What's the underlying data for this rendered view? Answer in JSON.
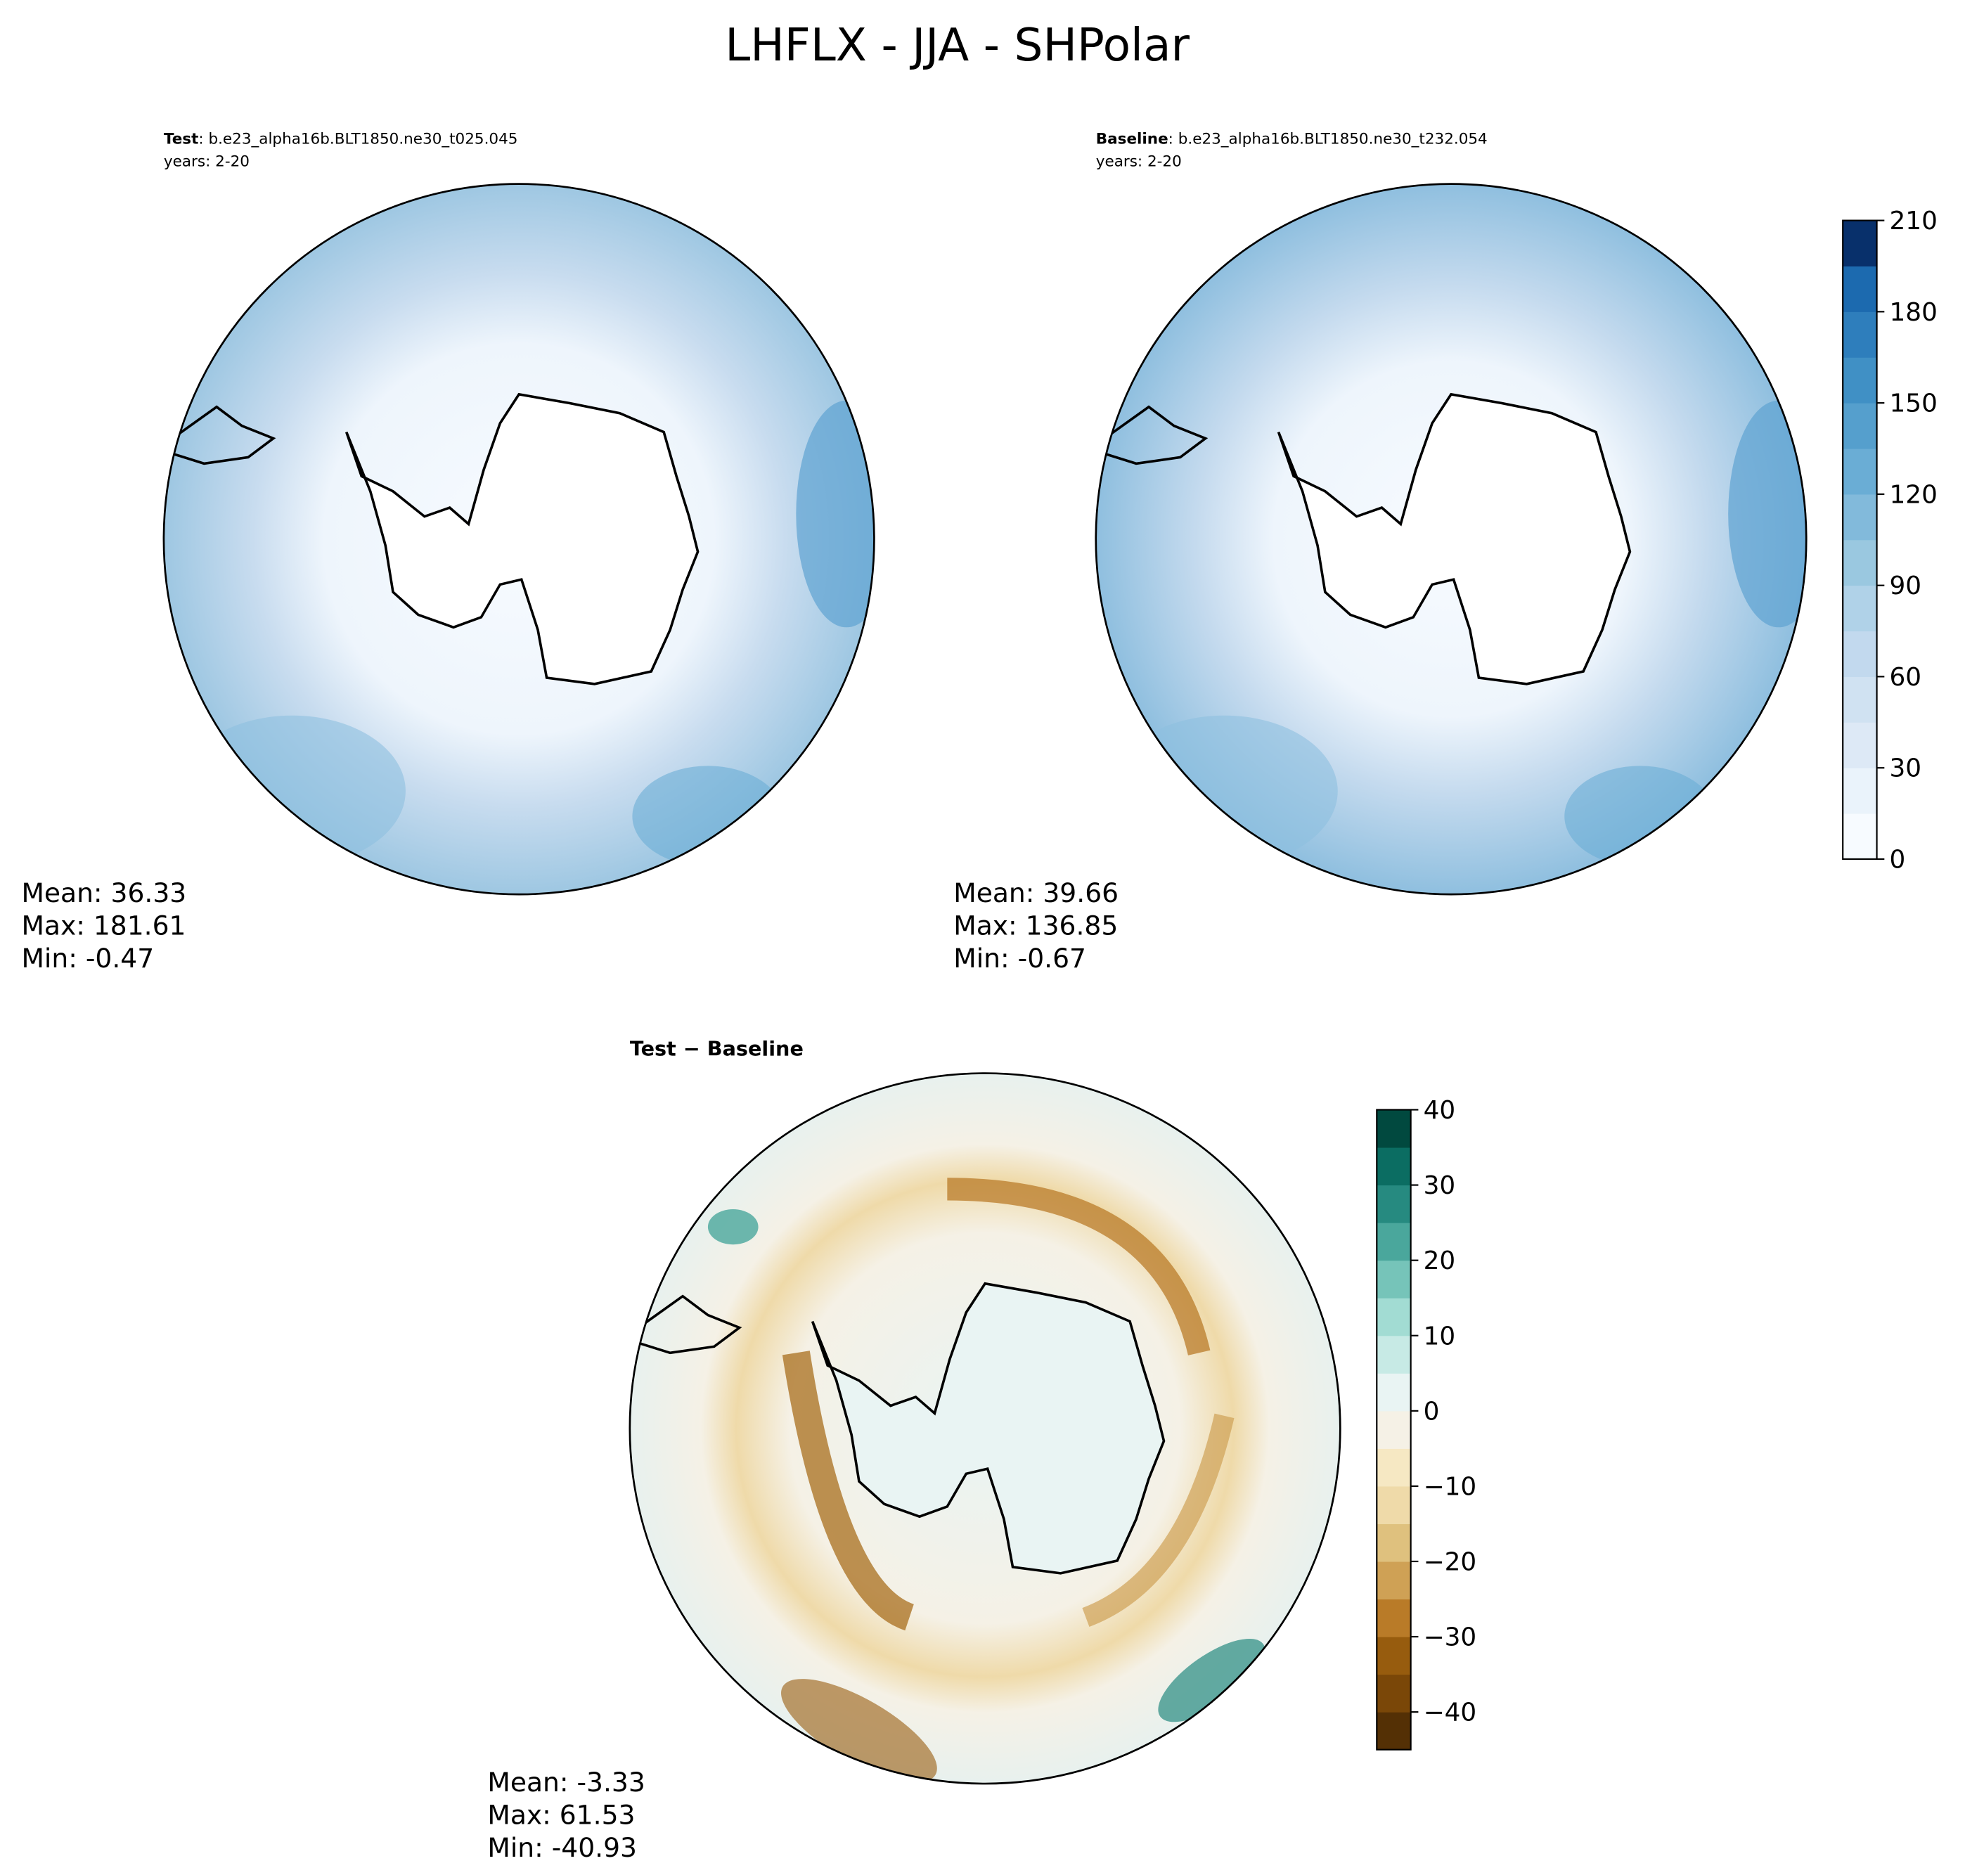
{
  "title": "LHFLX - JJA - SHPolar",
  "panels": [
    {
      "label_bold": "Test",
      "label_rest": ": b.e23_alpha16b.BLT1850.ne30_t025.045",
      "years": "years: 2-20",
      "stats": [
        "Mean: 36.33",
        "Max: 181.61",
        "Min: -0.47"
      ]
    },
    {
      "label_bold": "Baseline",
      "label_rest": ": b.e23_alpha16b.BLT1850.ne30_t232.054",
      "years": "years: 2-20",
      "stats": [
        "Mean: 39.66",
        "Max: 136.85",
        "Min: -0.67"
      ]
    },
    {
      "label_bold": "Test − Baseline",
      "stats": [
        "Mean: -3.33",
        "Max: 61.53",
        "Min: -40.93"
      ]
    }
  ],
  "colorbars": [
    {
      "lim": [
        0,
        210
      ],
      "ticks": [
        0,
        30,
        60,
        90,
        120,
        150,
        180,
        210
      ],
      "colors": [
        "#f7fbff",
        "#eaf3fb",
        "#dde9f6",
        "#d0e2f2",
        "#c2d9ee",
        "#b0d2e8",
        "#9ac8e0",
        "#82badb",
        "#6aadd5",
        "#559fcd",
        "#4090c5",
        "#2e7ebc",
        "#1c6aaf",
        "#08306b"
      ]
    },
    {
      "lim": [
        -45,
        40
      ],
      "ticks": [
        {
          "value": -40,
          "label": "−40"
        },
        {
          "value": -30,
          "label": "−30"
        },
        {
          "value": -20,
          "label": "−20"
        },
        {
          "value": -10,
          "label": "−10"
        },
        0,
        10,
        20,
        30,
        40
      ],
      "colors": [
        "#543005",
        "#7a4708",
        "#975c0e",
        "#b97b28",
        "#cfa155",
        "#dfc17e",
        "#efdaa9",
        "#f6e8c3",
        "#f5f1e6",
        "#e9f4f3",
        "#c7eae5",
        "#a2dcd3",
        "#76c4b9",
        "#4aa79c",
        "#268a80",
        "#0b6d62",
        "#01493f"
      ]
    }
  ]
}
